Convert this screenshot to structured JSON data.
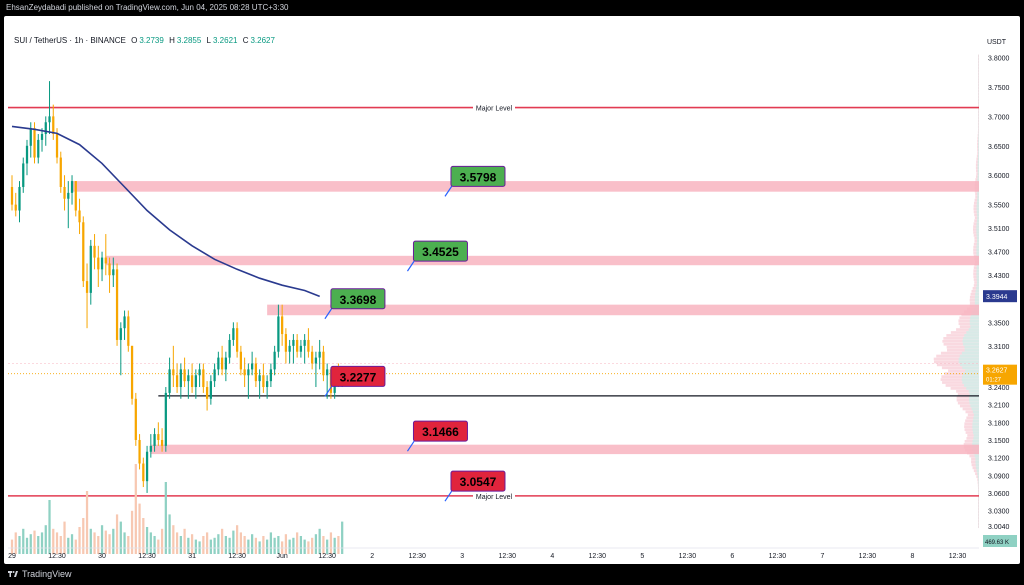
{
  "header": {
    "published": "EhsanZeydabadi published on TradingView.com, Jun 04, 2025 08:28 UTC+3:30"
  },
  "legend": {
    "symbol": "SUI / TetherUS · 1h · BINANCE",
    "o_label": "O",
    "o_value": "3.2739",
    "h_label": "H",
    "h_value": "3.2855",
    "l_label": "L",
    "l_value": "3.2621",
    "c_label": "C",
    "c_value": "3.2627"
  },
  "currency": "USDT",
  "footer": {
    "brand": "TradingView"
  },
  "colors": {
    "up": "#089981",
    "down": "#f7a600",
    "zone": "#f8b4c0",
    "major": "#e23b52",
    "ma": "#2a3a8f",
    "label_green": "#4caf50",
    "label_red": "#e0243c"
  },
  "chart_data": {
    "type": "candlestick",
    "ylim": [
      2.98,
      3.84
    ],
    "y_ticks": [
      "3.8000",
      "3.7500",
      "3.7000",
      "3.6500",
      "3.6000",
      "3.5500",
      "3.5100",
      "3.4700",
      "3.4300",
      "3.3900",
      "3.3500",
      "3.3100",
      "3.2700",
      "3.2400",
      "3.2100",
      "3.1800",
      "3.1500",
      "3.1200",
      "3.0900",
      "3.0600",
      "3.0300",
      "3.0040"
    ],
    "y_tick_values": [
      3.8,
      3.75,
      3.7,
      3.65,
      3.6,
      3.55,
      3.51,
      3.47,
      3.43,
      3.39,
      3.35,
      3.31,
      3.27,
      3.24,
      3.21,
      3.18,
      3.15,
      3.12,
      3.09,
      3.06,
      3.03,
      3.004
    ],
    "x_ticks": [
      "29",
      "12:30",
      "30",
      "12:30",
      "31",
      "12:30",
      "Jun",
      "12:30",
      "2",
      "12:30",
      "3",
      "12:30",
      "4",
      "12:30",
      "5",
      "12:30",
      "6",
      "12:30",
      "7",
      "12:30",
      "8",
      "12:30"
    ],
    "x_tick_hours": [
      0,
      12,
      24,
      36,
      48,
      60,
      72,
      84,
      96,
      108,
      120,
      132,
      144,
      156,
      168,
      180,
      192,
      204,
      216,
      228,
      240,
      252
    ],
    "last_hour": 151,
    "current_price": {
      "value": 3.2627,
      "label": "3.2627",
      "countdown": "01:27"
    },
    "ma_price": {
      "value": 3.3944,
      "label": "3.3944"
    },
    "volume_readout": "469.63 K",
    "major_levels": [
      {
        "price": 3.715,
        "label": "Major Level"
      },
      {
        "price": 3.055,
        "label": "Major Level"
      }
    ],
    "zones": [
      {
        "low": 3.572,
        "high": 3.59,
        "from_hour": 16
      },
      {
        "low": 3.447,
        "high": 3.463,
        "from_hour": 25
      },
      {
        "low": 3.362,
        "high": 3.38,
        "from_hour": 68
      },
      {
        "low": 3.126,
        "high": 3.142,
        "from_hour": 37
      }
    ],
    "support_line": {
      "price": 3.225,
      "from_hour": 39
    },
    "price_labels": [
      {
        "text": "3.5798",
        "price": 3.598,
        "hour": 117,
        "type": "resistance"
      },
      {
        "text": "3.4525",
        "price": 3.471,
        "hour": 107,
        "type": "resistance"
      },
      {
        "text": "3.3698",
        "price": 3.39,
        "hour": 85,
        "type": "resistance"
      },
      {
        "text": "3.2277",
        "price": 3.258,
        "hour": 85,
        "type": "support"
      },
      {
        "text": "3.1466",
        "price": 3.165,
        "hour": 107,
        "type": "support"
      },
      {
        "text": "3.0547",
        "price": 3.08,
        "hour": 117,
        "type": "support"
      }
    ],
    "moving_average": [
      [
        0,
        3.683
      ],
      [
        6,
        3.678
      ],
      [
        12,
        3.671
      ],
      [
        18,
        3.652
      ],
      [
        24,
        3.62
      ],
      [
        30,
        3.58
      ],
      [
        36,
        3.54
      ],
      [
        42,
        3.507
      ],
      [
        48,
        3.48
      ],
      [
        54,
        3.457
      ],
      [
        60,
        3.44
      ],
      [
        66,
        3.425
      ],
      [
        72,
        3.413
      ],
      [
        78,
        3.404
      ],
      [
        82,
        3.394
      ]
    ],
    "candles": [
      [
        0,
        3.58,
        3.6,
        3.54,
        3.55
      ],
      [
        1,
        3.55,
        3.57,
        3.53,
        3.54
      ],
      [
        2,
        3.54,
        3.59,
        3.52,
        3.58
      ],
      [
        3,
        3.58,
        3.63,
        3.57,
        3.62
      ],
      [
        4,
        3.62,
        3.66,
        3.6,
        3.65
      ],
      [
        5,
        3.65,
        3.69,
        3.63,
        3.68
      ],
      [
        6,
        3.68,
        3.69,
        3.62,
        3.63
      ],
      [
        7,
        3.63,
        3.67,
        3.62,
        3.66
      ],
      [
        8,
        3.66,
        3.68,
        3.64,
        3.67
      ],
      [
        9,
        3.67,
        3.7,
        3.65,
        3.69
      ],
      [
        10,
        3.69,
        3.76,
        3.67,
        3.7
      ],
      [
        11,
        3.7,
        3.72,
        3.66,
        3.67
      ],
      [
        12,
        3.67,
        3.68,
        3.62,
        3.63
      ],
      [
        13,
        3.63,
        3.64,
        3.57,
        3.58
      ],
      [
        14,
        3.58,
        3.6,
        3.54,
        3.56
      ],
      [
        15,
        3.56,
        3.59,
        3.51,
        3.57
      ],
      [
        16,
        3.57,
        3.6,
        3.55,
        3.59
      ],
      [
        17,
        3.59,
        3.59,
        3.53,
        3.54
      ],
      [
        18,
        3.54,
        3.56,
        3.5,
        3.52
      ],
      [
        19,
        3.52,
        3.53,
        3.41,
        3.42
      ],
      [
        20,
        3.42,
        3.45,
        3.34,
        3.4
      ],
      [
        21,
        3.4,
        3.49,
        3.38,
        3.48
      ],
      [
        22,
        3.48,
        3.5,
        3.44,
        3.46
      ],
      [
        23,
        3.46,
        3.48,
        3.41,
        3.44
      ],
      [
        24,
        3.44,
        3.47,
        3.42,
        3.46
      ],
      [
        25,
        3.46,
        3.5,
        3.43,
        3.45
      ],
      [
        26,
        3.45,
        3.46,
        3.4,
        3.43
      ],
      [
        27,
        3.43,
        3.46,
        3.41,
        3.44
      ],
      [
        28,
        3.44,
        3.45,
        3.31,
        3.32
      ],
      [
        29,
        3.32,
        3.35,
        3.26,
        3.34
      ],
      [
        30,
        3.34,
        3.37,
        3.32,
        3.36
      ],
      [
        31,
        3.36,
        3.37,
        3.3,
        3.31
      ],
      [
        32,
        3.31,
        3.31,
        3.21,
        3.22
      ],
      [
        33,
        3.22,
        3.23,
        3.14,
        3.15
      ],
      [
        34,
        3.15,
        3.16,
        3.1,
        3.11
      ],
      [
        35,
        3.11,
        3.12,
        3.07,
        3.08
      ],
      [
        36,
        3.08,
        3.14,
        3.06,
        3.13
      ],
      [
        37,
        3.13,
        3.16,
        3.12,
        3.14
      ],
      [
        38,
        3.14,
        3.17,
        3.13,
        3.16
      ],
      [
        39,
        3.16,
        3.18,
        3.14,
        3.15
      ],
      [
        40,
        3.15,
        3.17,
        3.13,
        3.14
      ],
      [
        41,
        3.14,
        3.24,
        3.13,
        3.23
      ],
      [
        42,
        3.23,
        3.29,
        3.22,
        3.27
      ],
      [
        43,
        3.27,
        3.31,
        3.24,
        3.26
      ],
      [
        44,
        3.26,
        3.28,
        3.23,
        3.24
      ],
      [
        45,
        3.24,
        3.28,
        3.22,
        3.27
      ],
      [
        46,
        3.27,
        3.29,
        3.24,
        3.25
      ],
      [
        47,
        3.25,
        3.27,
        3.22,
        3.26
      ],
      [
        48,
        3.26,
        3.28,
        3.23,
        3.24
      ],
      [
        49,
        3.24,
        3.27,
        3.22,
        3.26
      ],
      [
        50,
        3.26,
        3.28,
        3.24,
        3.27
      ],
      [
        51,
        3.27,
        3.28,
        3.23,
        3.24
      ],
      [
        52,
        3.24,
        3.25,
        3.2,
        3.22
      ],
      [
        53,
        3.22,
        3.26,
        3.21,
        3.25
      ],
      [
        54,
        3.25,
        3.28,
        3.24,
        3.27
      ],
      [
        55,
        3.27,
        3.3,
        3.26,
        3.29
      ],
      [
        56,
        3.29,
        3.31,
        3.26,
        3.27
      ],
      [
        57,
        3.27,
        3.3,
        3.25,
        3.29
      ],
      [
        58,
        3.29,
        3.33,
        3.28,
        3.32
      ],
      [
        59,
        3.32,
        3.35,
        3.31,
        3.34
      ],
      [
        60,
        3.34,
        3.35,
        3.29,
        3.3
      ],
      [
        61,
        3.3,
        3.31,
        3.26,
        3.27
      ],
      [
        62,
        3.27,
        3.29,
        3.24,
        3.26
      ],
      [
        63,
        3.26,
        3.28,
        3.22,
        3.27
      ],
      [
        64,
        3.27,
        3.3,
        3.26,
        3.28
      ],
      [
        65,
        3.28,
        3.29,
        3.24,
        3.25
      ],
      [
        66,
        3.25,
        3.27,
        3.22,
        3.26
      ],
      [
        67,
        3.26,
        3.28,
        3.23,
        3.24
      ],
      [
        68,
        3.24,
        3.26,
        3.22,
        3.25
      ],
      [
        69,
        3.25,
        3.28,
        3.24,
        3.27
      ],
      [
        70,
        3.27,
        3.31,
        3.26,
        3.3
      ],
      [
        71,
        3.3,
        3.38,
        3.29,
        3.36
      ],
      [
        72,
        3.36,
        3.38,
        3.31,
        3.33
      ],
      [
        73,
        3.33,
        3.34,
        3.28,
        3.3
      ],
      [
        74,
        3.3,
        3.32,
        3.28,
        3.31
      ],
      [
        75,
        3.31,
        3.33,
        3.28,
        3.32
      ],
      [
        76,
        3.32,
        3.33,
        3.29,
        3.3
      ],
      [
        77,
        3.3,
        3.32,
        3.29,
        3.31
      ],
      [
        78,
        3.31,
        3.33,
        3.28,
        3.32
      ],
      [
        79,
        3.32,
        3.34,
        3.29,
        3.3
      ],
      [
        80,
        3.3,
        3.31,
        3.27,
        3.28
      ],
      [
        81,
        3.28,
        3.3,
        3.24,
        3.29
      ],
      [
        82,
        3.29,
        3.32,
        3.27,
        3.3
      ],
      [
        83,
        3.3,
        3.31,
        3.25,
        3.26
      ],
      [
        84,
        3.26,
        3.28,
        3.22,
        3.27
      ],
      [
        85,
        3.27,
        3.27,
        3.22,
        3.23
      ],
      [
        86,
        3.23,
        3.27,
        3.22,
        3.26
      ],
      [
        87,
        3.26,
        3.28,
        3.24,
        3.25
      ],
      [
        88,
        3.25,
        3.27,
        3.24,
        3.26
      ]
    ],
    "volumes": [
      0.08,
      0.12,
      0.1,
      0.14,
      0.09,
      0.11,
      0.13,
      0.1,
      0.12,
      0.16,
      0.3,
      0.14,
      0.12,
      0.1,
      0.18,
      0.09,
      0.11,
      0.08,
      0.15,
      0.2,
      0.35,
      0.14,
      0.12,
      0.1,
      0.16,
      0.13,
      0.11,
      0.14,
      0.22,
      0.18,
      0.12,
      0.1,
      0.24,
      0.5,
      0.28,
      0.2,
      0.15,
      0.12,
      0.1,
      0.08,
      0.14,
      0.4,
      0.22,
      0.16,
      0.12,
      0.1,
      0.14,
      0.09,
      0.11,
      0.08,
      0.07,
      0.1,
      0.12,
      0.08,
      0.09,
      0.11,
      0.14,
      0.1,
      0.09,
      0.13,
      0.16,
      0.12,
      0.1,
      0.08,
      0.11,
      0.09,
      0.07,
      0.1,
      0.08,
      0.12,
      0.09,
      0.1,
      0.07,
      0.11,
      0.08,
      0.09,
      0.12,
      0.1,
      0.08,
      0.07,
      0.09,
      0.11,
      0.14,
      0.1,
      0.08,
      0.12,
      0.09,
      0.1,
      0.18
    ]
  }
}
